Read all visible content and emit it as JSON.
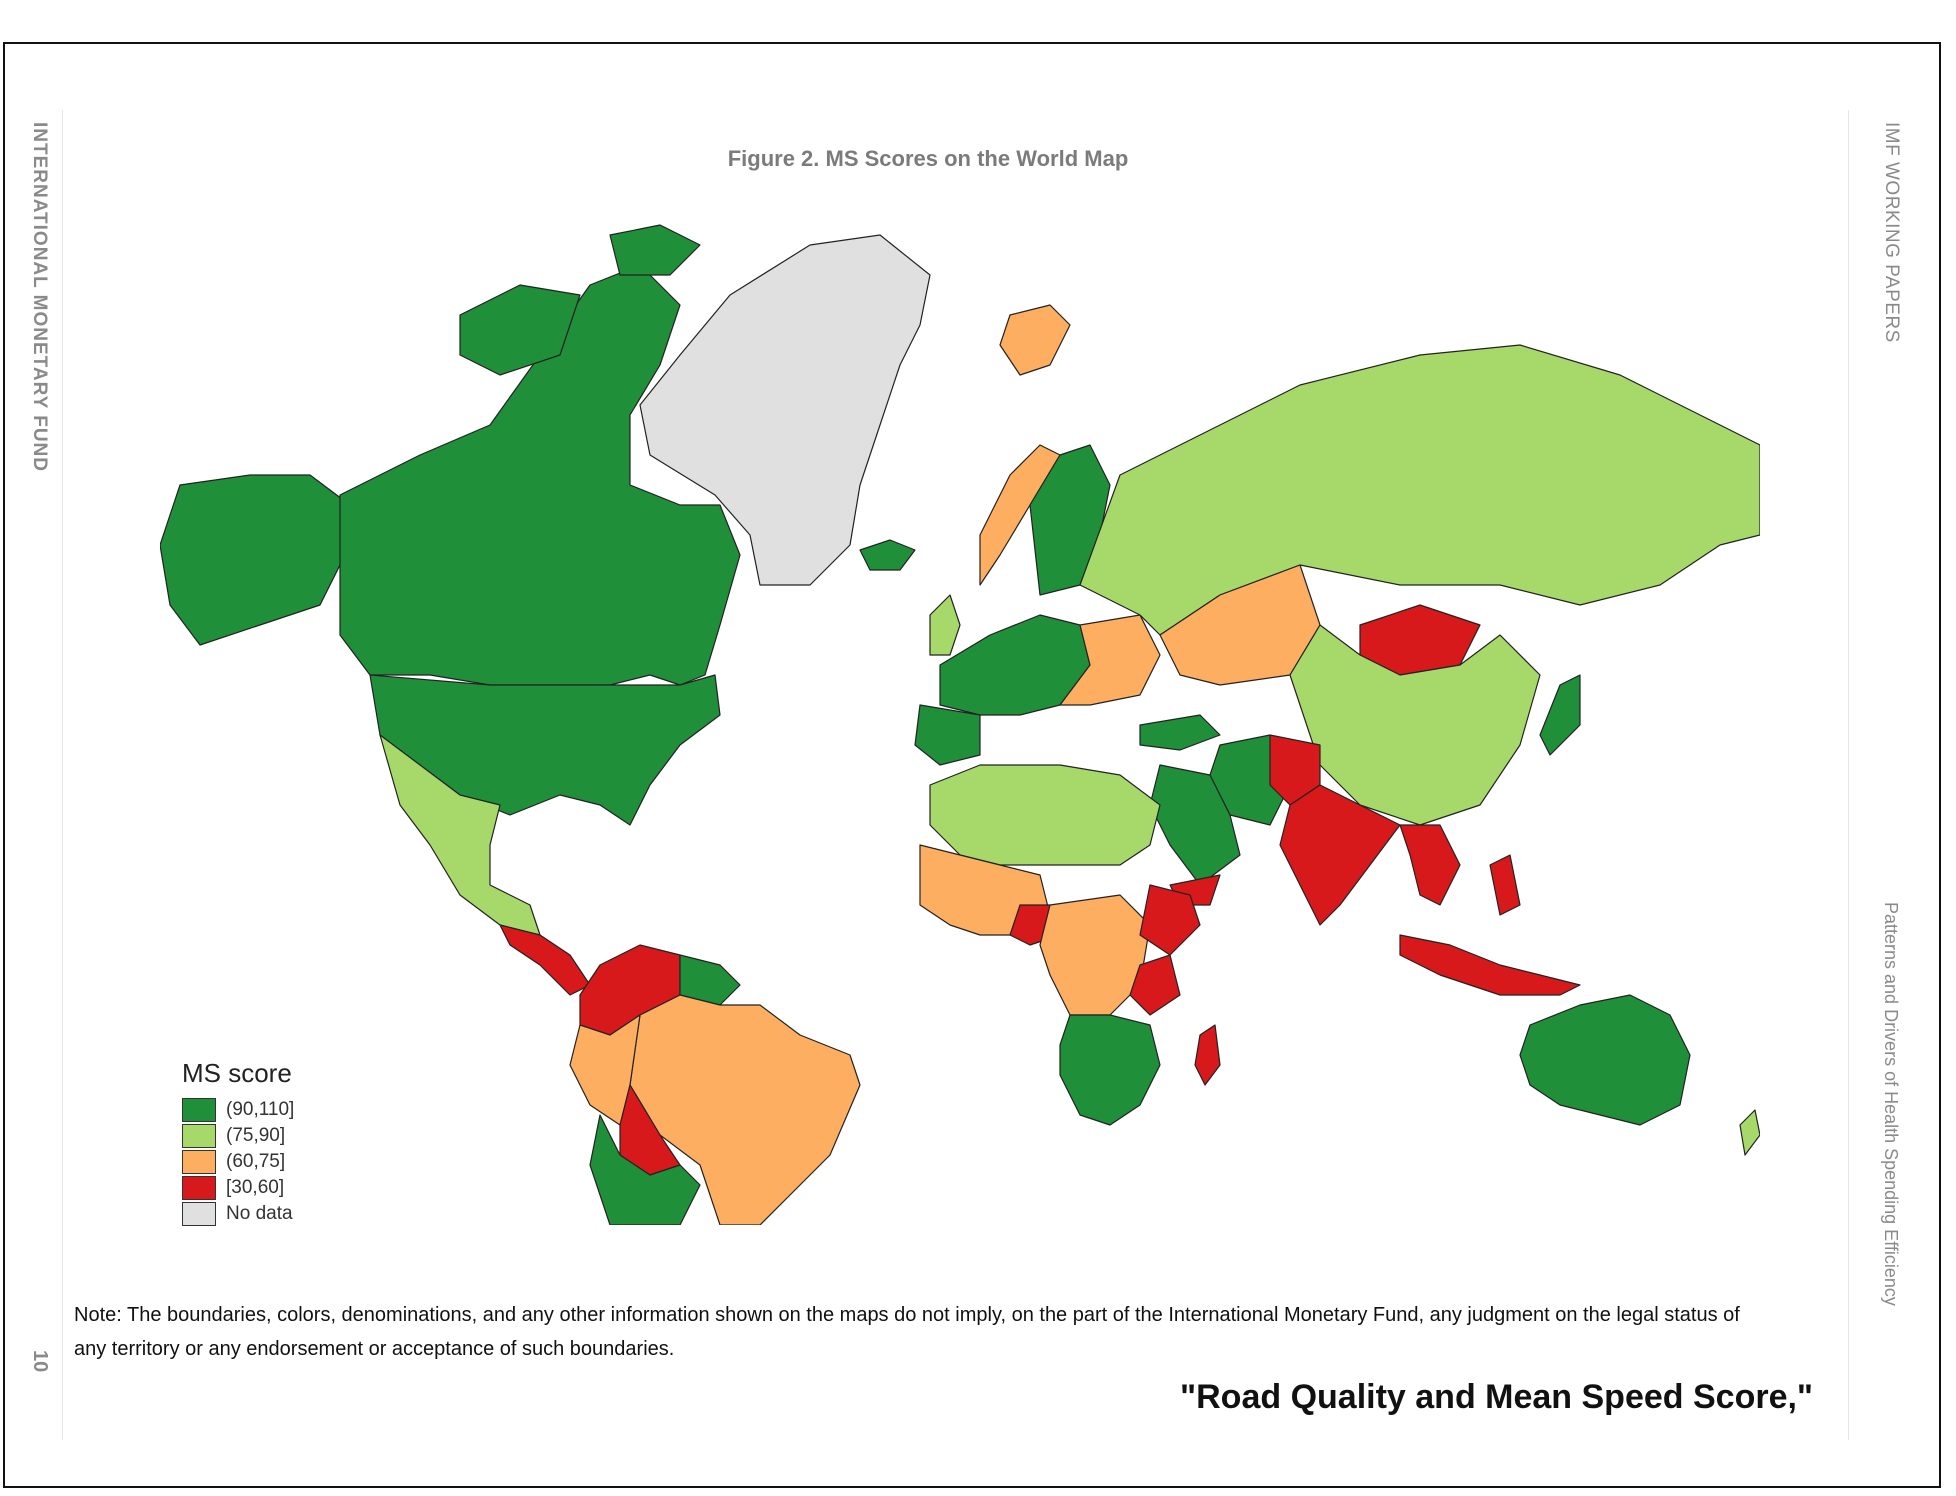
{
  "header": {
    "left_running_head": "INTERNATIONAL MONETARY FUND",
    "right_running_head": "IMF WORKING PAPERS",
    "right_running_subhead": "Patterns and Drivers of Health Spending Efficiency",
    "page_number": "10"
  },
  "figure": {
    "title": "Figure 2. MS Scores on the World Map"
  },
  "legend": {
    "title": "MS score",
    "items": [
      {
        "label": "(90,110]",
        "color": "#1f8f3a"
      },
      {
        "label": "(75,90]",
        "color": "#a6d96a"
      },
      {
        "label": "(60,75]",
        "color": "#fdae61"
      },
      {
        "label": "[30,60]",
        "color": "#d7191c"
      },
      {
        "label": "No data",
        "color": "#e0e0e0"
      }
    ]
  },
  "note": "Note: The boundaries, colors, denominations, and any other information shown on the maps do not imply, on the part of the International Monetary Fund, any judgment on the legal status of any territory or any endorsement or acceptance of such boundaries.",
  "overlay_caption": "\"Road Quality and Mean Speed Score,\""
}
